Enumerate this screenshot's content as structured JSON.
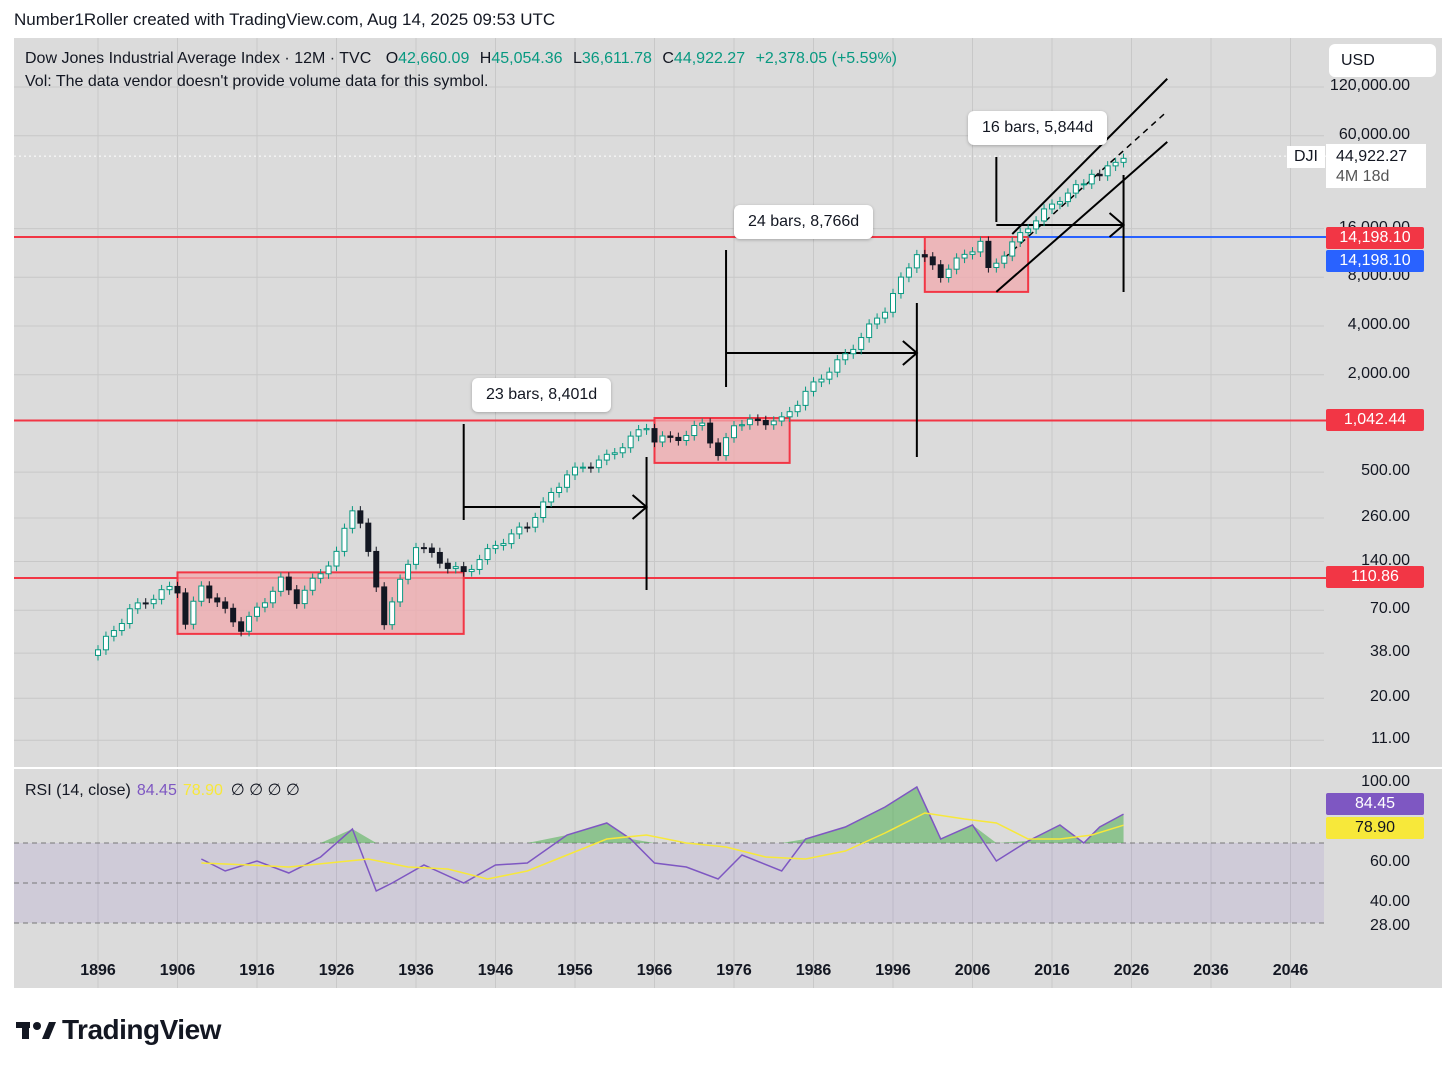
{
  "header": {
    "attribution": "Number1Roller created with TradingView.com, Aug 14, 2025 09:53 UTC"
  },
  "legend": {
    "title": "Dow Jones Industrial Average Index · 12M · TVC",
    "o_label": "O",
    "o_value": "42,660.09",
    "h_label": "H",
    "h_value": "45,054.36",
    "l_label": "L",
    "l_value": "36,611.78",
    "c_label": "C",
    "c_value": "44,922.27",
    "change": "+2,378.05 (+5.59%)",
    "volume_note": "Vol: The data vendor doesn't provide volume data for this symbol."
  },
  "currency_button": "USD",
  "symbol_tag": "DJI",
  "price_tag": {
    "value": "44,922.27",
    "countdown": "4M 18d"
  },
  "annotations": [
    {
      "text": "23 bars, 8,401d"
    },
    {
      "text": "24 bars, 8,766d"
    },
    {
      "text": "16 bars, 5,844d"
    }
  ],
  "level_badges": [
    {
      "text": "14,198.10",
      "color": "#f23645"
    },
    {
      "text": "14,198.10",
      "color": "#2962ff"
    },
    {
      "text": "1,042.44",
      "color": "#f23645"
    },
    {
      "text": "110.86",
      "color": "#f23645"
    }
  ],
  "rsi": {
    "label": "RSI (14, close)",
    "value": "84.45",
    "ma_value": "78.90",
    "nulls": "∅ ∅ ∅ ∅",
    "value_color": "#7e57c2",
    "ma_color": "#f7e83a"
  },
  "brand": {
    "name": "TradingView"
  },
  "colors": {
    "up": "#089981",
    "down": "#131722",
    "level_line": "#f23645",
    "blue_line": "#2962ff",
    "range_fill": "#f2a9ae"
  },
  "chart_data": [
    {
      "type": "candlestick",
      "title": "Dow Jones Industrial Average Index · 12M · TVC",
      "scale": "log",
      "x_tick_labels": [
        "1896",
        "1906",
        "1916",
        "1926",
        "1936",
        "1946",
        "1956",
        "1966",
        "1976",
        "1986",
        "1996",
        "2006",
        "2016",
        "2026",
        "2036",
        "2046"
      ],
      "y_tick_labels": [
        "120,000.00",
        "60,000.00",
        "16,000.00",
        "8,000.00",
        "4,000.00",
        "2,000.00",
        "500.00",
        "260.00",
        "140.00",
        "70.00",
        "38.00",
        "20.00",
        "11.00"
      ],
      "horizontal_levels": [
        14198.1,
        1042.44,
        110.86
      ],
      "last_close": 44922.27,
      "consolidation_ranges": [
        {
          "start_year": 1906,
          "end_year": 1942,
          "low": 50,
          "high": 120
        },
        {
          "start_year": 1966,
          "end_year": 1983,
          "low": 570,
          "high": 1080
        },
        {
          "start_year": 2000,
          "end_year": 2013,
          "low": 6500,
          "high": 14200
        }
      ],
      "measurements": [
        {
          "from_year": 1942,
          "to_year": 1965,
          "label": "23 bars, 8,401d"
        },
        {
          "from_year": 1975,
          "to_year": 1999,
          "label": "24 bars, 8,766d"
        },
        {
          "from_year": 2009,
          "to_year": 2025,
          "label": "16 bars, 5,844d"
        }
      ],
      "series": [
        {
          "year": 1896,
          "close": 40
        },
        {
          "year": 1900,
          "close": 70
        },
        {
          "year": 1905,
          "close": 96
        },
        {
          "year": 1906,
          "close": 94
        },
        {
          "year": 1907,
          "close": 58
        },
        {
          "year": 1909,
          "close": 99
        },
        {
          "year": 1914,
          "close": 54
        },
        {
          "year": 1919,
          "close": 107
        },
        {
          "year": 1921,
          "close": 81
        },
        {
          "year": 1924,
          "close": 120
        },
        {
          "year": 1926,
          "close": 157
        },
        {
          "year": 1928,
          "close": 300
        },
        {
          "year": 1929,
          "close": 248
        },
        {
          "year": 1932,
          "close": 60
        },
        {
          "year": 1936,
          "close": 179
        },
        {
          "year": 1940,
          "close": 131
        },
        {
          "year": 1942,
          "close": 119
        },
        {
          "year": 1946,
          "close": 177
        },
        {
          "year": 1950,
          "close": 235
        },
        {
          "year": 1955,
          "close": 488
        },
        {
          "year": 1960,
          "close": 615
        },
        {
          "year": 1965,
          "close": 969
        },
        {
          "year": 1966,
          "close": 785
        },
        {
          "year": 1970,
          "close": 839
        },
        {
          "year": 1972,
          "close": 1020
        },
        {
          "year": 1974,
          "close": 616
        },
        {
          "year": 1976,
          "close": 1004
        },
        {
          "year": 1982,
          "close": 1046
        },
        {
          "year": 1985,
          "close": 1546
        },
        {
          "year": 1987,
          "close": 1938
        },
        {
          "year": 1990,
          "close": 2633
        },
        {
          "year": 1995,
          "close": 5117
        },
        {
          "year": 1999,
          "close": 11497
        },
        {
          "year": 2002,
          "close": 8341
        },
        {
          "year": 2007,
          "close": 13264
        },
        {
          "year": 2008,
          "close": 8776
        },
        {
          "year": 2013,
          "close": 16576
        },
        {
          "year": 2017,
          "close": 24719
        },
        {
          "year": 2020,
          "close": 30606
        },
        {
          "year": 2021,
          "close": 36338
        },
        {
          "year": 2022,
          "close": 33147
        },
        {
          "year": 2024,
          "close": 42544
        },
        {
          "year": 2025,
          "close": 44922
        }
      ]
    },
    {
      "type": "line",
      "title": "RSI (14, close)",
      "y_tick_labels": [
        "100.00",
        "60.00",
        "40.00",
        "28.00"
      ],
      "bands": [
        70,
        50,
        30
      ],
      "series": [
        {
          "name": "RSI",
          "x": [
            1909,
            1912,
            1916,
            1920,
            1924,
            1928,
            1931,
            1933,
            1937,
            1942,
            1946,
            1950,
            1955,
            1960,
            1963,
            1966,
            1970,
            1974,
            1977,
            1982,
            1985,
            1990,
            1995,
            1999,
            2002,
            2006,
            2009,
            2013,
            2017,
            2020,
            2022,
            2025
          ],
          "y": [
            62,
            56,
            61,
            55,
            63,
            77,
            46,
            50,
            59,
            50,
            59,
            60,
            74,
            80,
            72,
            60,
            58,
            52,
            64,
            56,
            72,
            78,
            88,
            98,
            72,
            79,
            61,
            71,
            79,
            70,
            78,
            84.45
          ]
        },
        {
          "name": "RSI MA",
          "x": [
            1909,
            1915,
            1920,
            1925,
            1930,
            1935,
            1940,
            1945,
            1950,
            1955,
            1960,
            1965,
            1970,
            1975,
            1980,
            1985,
            1990,
            1995,
            2000,
            2005,
            2009,
            2013,
            2017,
            2021,
            2025
          ],
          "y": [
            60,
            59,
            58,
            60,
            62,
            58,
            57,
            52,
            56,
            64,
            72,
            74,
            70,
            68,
            63,
            62,
            66,
            75,
            85,
            82,
            80,
            72,
            72,
            74,
            78.9
          ]
        }
      ]
    }
  ]
}
